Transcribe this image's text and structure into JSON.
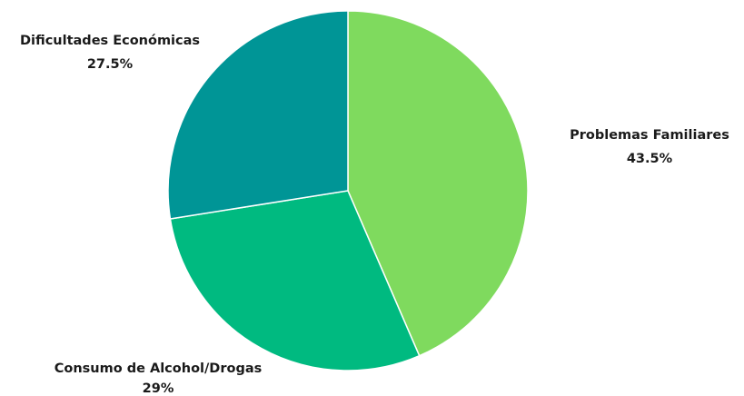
{
  "chart_data": {
    "type": "pie",
    "title": "",
    "slices": [
      {
        "label": "Problemas Familiares",
        "value": 43.5,
        "value_label": "43.5%",
        "color": "#7FDA5E"
      },
      {
        "label": "Consumo de Alcohol/Drogas",
        "value": 29,
        "value_label": "29%",
        "color": "#00BA80"
      },
      {
        "label": "Dificultades Económicas",
        "value": 27.5,
        "value_label": "27.5%",
        "color": "#009596"
      }
    ],
    "start_angle": "12 o'clock",
    "direction": "clockwise",
    "slice_border_color": "#ffffff"
  }
}
